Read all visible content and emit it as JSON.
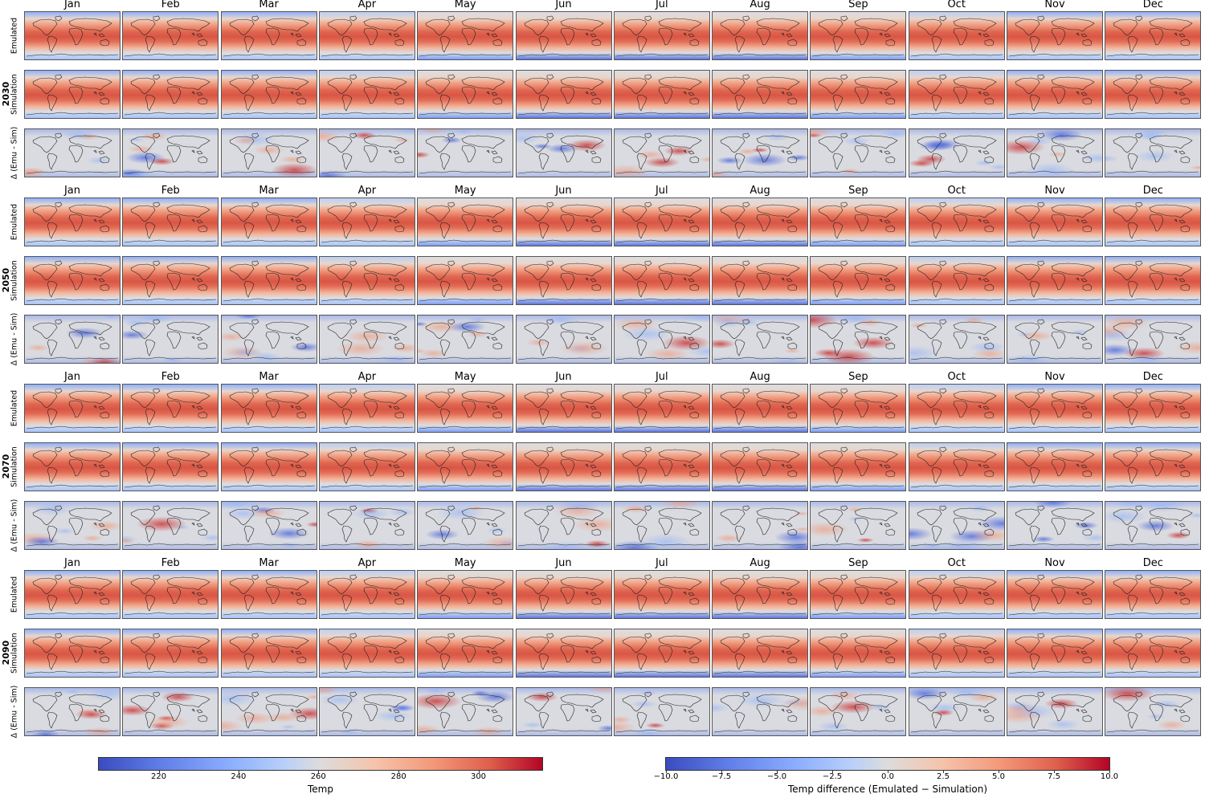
{
  "chart_data": {
    "type": "heatmap",
    "title": "",
    "description": "Grid of global monthly temperature maps: Emulated, Simulation, and difference (Emulated - Simulation) for years 2030, 2050, 2070, 2090",
    "columns": [
      "Jan",
      "Feb",
      "Mar",
      "Apr",
      "May",
      "Jun",
      "Jul",
      "Aug",
      "Sep",
      "Oct",
      "Nov",
      "Dec"
    ],
    "groups": [
      {
        "year": "2030",
        "rows": [
          "Emulated",
          "Simulation",
          "Δ (Emu - Sim)"
        ]
      },
      {
        "year": "2050",
        "rows": [
          "Emulated",
          "Simulation",
          "Δ (Emu - Sim)"
        ]
      },
      {
        "year": "2070",
        "rows": [
          "Emulated",
          "Simulation",
          "Δ (Emu - Sim)"
        ]
      },
      {
        "year": "2090",
        "rows": [
          "Emulated",
          "Simulation",
          "Δ (Emu - Sim)"
        ]
      }
    ],
    "colormap": "coolwarm",
    "colorbars": [
      {
        "label": "Temp",
        "range": [
          205,
          316
        ],
        "ticks": [
          220,
          240,
          260,
          280,
          300
        ]
      },
      {
        "label": "Temp difference (Emulated − Simulation)",
        "range": [
          -10.0,
          10.0
        ],
        "ticks": [
          -10.0,
          -7.5,
          -5.0,
          -2.5,
          0.0,
          2.5,
          5.0,
          7.5,
          10.0
        ]
      }
    ]
  },
  "months": [
    "Jan",
    "Feb",
    "Mar",
    "Apr",
    "May",
    "Jun",
    "Jul",
    "Aug",
    "Sep",
    "Oct",
    "Nov",
    "Dec"
  ],
  "years": [
    "2030",
    "2050",
    "2070",
    "2090"
  ],
  "row_labels": {
    "emulated": "Emulated",
    "simulation": "Simulation",
    "delta": "Δ (Emu - Sim)"
  },
  "colorbar_temp": {
    "label": "Temp",
    "ticks": [
      "220",
      "240",
      "260",
      "280",
      "300"
    ],
    "tick_positions": [
      0.135,
      0.315,
      0.495,
      0.676,
      0.856
    ]
  },
  "colorbar_diff": {
    "label": "Temp difference (Emulated − Simulation)",
    "ticks": [
      "−10.0",
      "−7.5",
      "−5.0",
      "−2.5",
      "0.0",
      "2.5",
      "5.0",
      "7.5",
      "10.0"
    ],
    "tick_positions": [
      0,
      0.125,
      0.25,
      0.375,
      0.5,
      0.625,
      0.75,
      0.875,
      1.0
    ]
  },
  "colors": {
    "cold": "#3b4cc0",
    "neutral": "#dddddd",
    "warm": "#b40426"
  }
}
